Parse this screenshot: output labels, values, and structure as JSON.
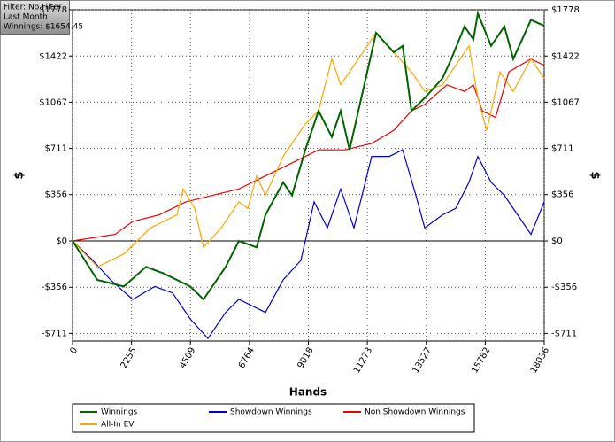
{
  "chart_data": {
    "type": "line",
    "info": [
      "Filter: No Filter",
      "Last Month",
      "Winnings: $1654.45"
    ],
    "xlabel": "Hands",
    "ylabel": "$",
    "y2label": "$",
    "xlim": [
      0,
      18036
    ],
    "xticks": [
      0,
      2255,
      4509,
      6764,
      9018,
      11273,
      13527,
      15782,
      18036
    ],
    "ylim": [
      -770,
      1778
    ],
    "yticks": [
      {
        "value": -711,
        "label": "-$711"
      },
      {
        "value": -356,
        "label": "-$356"
      },
      {
        "value": 0,
        "label": "$0"
      },
      {
        "value": 356,
        "label": "$356"
      },
      {
        "value": 711,
        "label": "$711"
      },
      {
        "value": 1067,
        "label": "$1067"
      },
      {
        "value": 1422,
        "label": "$1422"
      },
      {
        "value": 1778,
        "label": "$1778"
      }
    ],
    "y2lim": [
      -770,
      1778
    ],
    "y2ticks": [
      {
        "value": -711,
        "label": "-$711"
      },
      {
        "value": -356,
        "label": "-$356"
      },
      {
        "value": 0,
        "label": "$0"
      },
      {
        "value": 356,
        "label": "$356"
      },
      {
        "value": 711,
        "label": "$711"
      },
      {
        "value": 1067,
        "label": "$1067"
      },
      {
        "value": 1422,
        "label": "$1422"
      },
      {
        "value": 1778,
        "label": "$1778"
      }
    ],
    "grid": true,
    "series": [
      {
        "name": "Winnings",
        "color": "#006400",
        "x": [
          0,
          948,
          1963,
          2809,
          3486,
          4501,
          5008,
          5854,
          6362,
          7039,
          7377,
          8054,
          8392,
          8900,
          9408,
          9915,
          10254,
          10592,
          10930,
          11607,
          12284,
          12622,
          12960,
          13468,
          14145,
          14484,
          14991,
          15330,
          15499,
          16006,
          16514,
          16852,
          17529,
          18036
        ],
        "values": [
          0,
          -300,
          -350,
          -200,
          -250,
          -350,
          -450,
          -200,
          0,
          -50,
          200,
          450,
          350,
          700,
          1000,
          800,
          1000,
          700,
          1000,
          1600,
          1450,
          1500,
          1000,
          1100,
          1250,
          1400,
          1650,
          1550,
          1750,
          1500,
          1650,
          1400,
          1700,
          1654.45
        ]
      },
      {
        "name": "Showdown Winnings",
        "color": "#0000cc",
        "x": [
          0,
          778,
          1455,
          2301,
          3147,
          3824,
          4501,
          5177,
          5854,
          6362,
          7377,
          8054,
          8730,
          9238,
          9746,
          10254,
          10761,
          11438,
          12115,
          12622,
          13130,
          13468,
          14145,
          14653,
          15160,
          15499,
          16006,
          16514,
          17021,
          17529,
          18036
        ],
        "values": [
          0,
          -150,
          -300,
          -450,
          -350,
          -400,
          -600,
          -750,
          -550,
          -450,
          -550,
          -300,
          -150,
          300,
          100,
          400,
          100,
          650,
          650,
          700,
          350,
          100,
          200,
          250,
          450,
          650,
          450,
          350,
          200,
          50,
          300
        ]
      },
      {
        "name": "Non Showdown Winnings",
        "color": "#ee0000",
        "x": [
          0,
          1624,
          2301,
          3316,
          4332,
          5347,
          6362,
          7377,
          8392,
          9408,
          10423,
          11438,
          12284,
          12960,
          13468,
          14314,
          14991,
          15330,
          15668,
          16176,
          16683,
          17529,
          18036
        ],
        "values": [
          0,
          50,
          150,
          200,
          300,
          350,
          400,
          500,
          600,
          700,
          700,
          750,
          850,
          1000,
          1050,
          1200,
          1150,
          1200,
          1000,
          950,
          1300,
          1400,
          1350
        ]
      },
      {
        "name": "All-In EV",
        "color": "#ffa500",
        "x": [
          0,
          948,
          1963,
          2978,
          3486,
          3993,
          4230,
          4670,
          5008,
          5685,
          6362,
          6700,
          7039,
          7377,
          8054,
          8900,
          9408,
          9915,
          10254,
          10930,
          11607,
          12284,
          12960,
          13468,
          14145,
          14653,
          15160,
          15499,
          15837,
          16345,
          16852,
          17529,
          18036
        ],
        "values": [
          0,
          -200,
          -100,
          100,
          150,
          200,
          400,
          250,
          -50,
          100,
          300,
          250,
          500,
          350,
          650,
          900,
          1000,
          1400,
          1200,
          1400,
          1600,
          1450,
          1300,
          1150,
          1200,
          1350,
          1500,
          1100,
          850,
          1300,
          1150,
          1400,
          1250
        ]
      }
    ]
  }
}
